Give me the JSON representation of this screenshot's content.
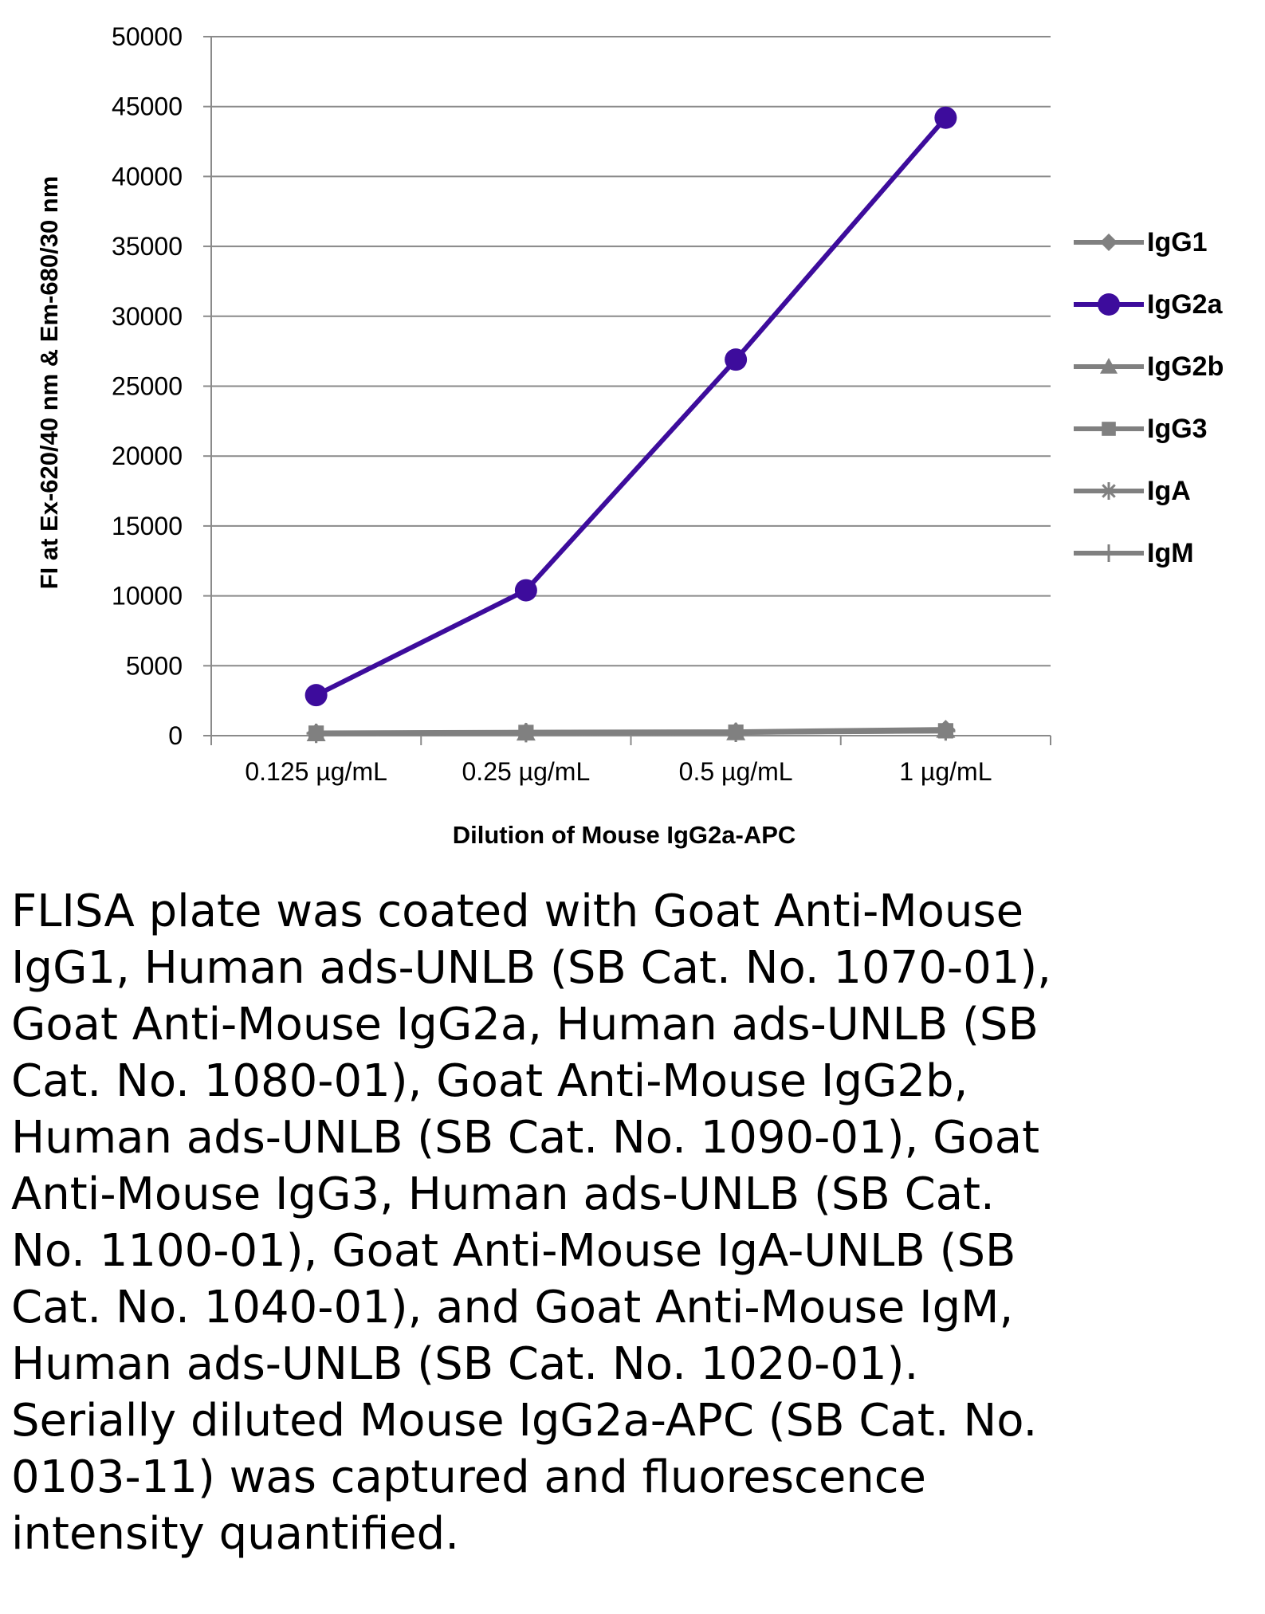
{
  "chart_data": {
    "type": "line",
    "categories": [
      "0.125 µg/mL",
      "0.25 µg/mL",
      "0.5 µg/mL",
      "1 µg/mL"
    ],
    "series": [
      {
        "name": "IgG1",
        "values": [
          200,
          250,
          280,
          450
        ],
        "color": "#808080",
        "marker": "diamond"
      },
      {
        "name": "IgG2a",
        "values": [
          2900,
          10400,
          26900,
          44200
        ],
        "color": "#3d0c9c",
        "marker": "circle"
      },
      {
        "name": "IgG2b",
        "values": [
          150,
          200,
          220,
          400
        ],
        "color": "#808080",
        "marker": "triangle"
      },
      {
        "name": "IgG3",
        "values": [
          180,
          230,
          250,
          350
        ],
        "color": "#808080",
        "marker": "square"
      },
      {
        "name": "IgA",
        "values": [
          160,
          210,
          230,
          330
        ],
        "color": "#808080",
        "marker": "star"
      },
      {
        "name": "IgM",
        "values": [
          170,
          220,
          240,
          340
        ],
        "color": "#808080",
        "marker": "plus"
      }
    ],
    "xlabel": "Dilution of Mouse IgG2a-APC",
    "ylabel": "FI at Ex-620/40 nm & Em-680/30 nm",
    "ylim": [
      0,
      50000
    ],
    "yticks": [
      "0",
      "5000",
      "10000",
      "15000",
      "20000",
      "25000",
      "30000",
      "35000",
      "40000",
      "45000",
      "50000"
    ],
    "grid": true,
    "legend_position": "right"
  },
  "caption": "FLISA plate was coated with Goat Anti-Mouse IgG1, Human ads-UNLB (SB Cat. No. 1070-01), Goat Anti-Mouse IgG2a, Human ads-UNLB (SB Cat. No. 1080-01), Goat Anti-Mouse IgG2b, Human ads-UNLB (SB Cat. No. 1090-01), Goat Anti-Mouse IgG3, Human ads-UNLB (SB Cat. No. 1100-01), Goat Anti-Mouse IgA-UNLB (SB Cat. No. 1040-01), and Goat Anti-Mouse IgM, Human ads-UNLB (SB Cat. No. 1020-01).  Serially diluted Mouse IgG2a-APC (SB Cat. No. 0103-11) was captured and fluorescence intensity quantified."
}
